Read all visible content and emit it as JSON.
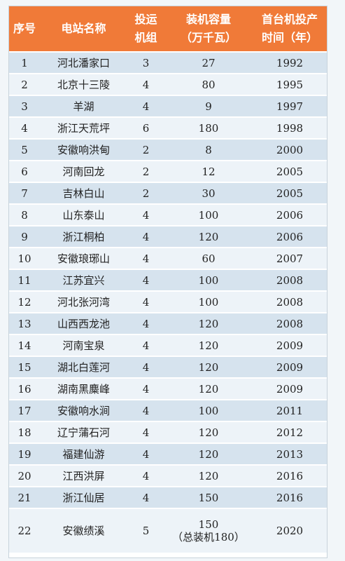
{
  "table": {
    "headers": [
      {
        "line1": "序号",
        "line2": ""
      },
      {
        "line1": "电站名称",
        "line2": ""
      },
      {
        "line1": "投运",
        "line2": "机组"
      },
      {
        "line1": "装机容量",
        "line2": "（万千瓦）"
      },
      {
        "line1": "首台机投产",
        "line2": "时间（年）"
      }
    ],
    "rows": [
      {
        "no": "1",
        "name": "河北潘家口",
        "units": "3",
        "capacity": "27",
        "capacity_note": "",
        "year": "1992"
      },
      {
        "no": "2",
        "name": "北京十三陵",
        "units": "4",
        "capacity": "80",
        "capacity_note": "",
        "year": "1995"
      },
      {
        "no": "3",
        "name": "羊湖",
        "units": "4",
        "capacity": "9",
        "capacity_note": "",
        "year": "1997"
      },
      {
        "no": "4",
        "name": "浙江天荒坪",
        "units": "6",
        "capacity": "180",
        "capacity_note": "",
        "year": "1998"
      },
      {
        "no": "5",
        "name": "安徽响洪甸",
        "units": "2",
        "capacity": "8",
        "capacity_note": "",
        "year": "2000"
      },
      {
        "no": "6",
        "name": "河南回龙",
        "units": "2",
        "capacity": "12",
        "capacity_note": "",
        "year": "2005"
      },
      {
        "no": "7",
        "name": "吉林白山",
        "units": "2",
        "capacity": "30",
        "capacity_note": "",
        "year": "2005"
      },
      {
        "no": "8",
        "name": "山东泰山",
        "units": "4",
        "capacity": "100",
        "capacity_note": "",
        "year": "2006"
      },
      {
        "no": "9",
        "name": "浙江桐柏",
        "units": "4",
        "capacity": "120",
        "capacity_note": "",
        "year": "2006"
      },
      {
        "no": "10",
        "name": "安徽琅琊山",
        "units": "4",
        "capacity": "60",
        "capacity_note": "",
        "year": "2007"
      },
      {
        "no": "11",
        "name": "江苏宜兴",
        "units": "4",
        "capacity": "100",
        "capacity_note": "",
        "year": "2008"
      },
      {
        "no": "12",
        "name": "河北张河湾",
        "units": "4",
        "capacity": "100",
        "capacity_note": "",
        "year": "2008"
      },
      {
        "no": "13",
        "name": "山西西龙池",
        "units": "4",
        "capacity": "120",
        "capacity_note": "",
        "year": "2008"
      },
      {
        "no": "14",
        "name": "河南宝泉",
        "units": "4",
        "capacity": "120",
        "capacity_note": "",
        "year": "2009"
      },
      {
        "no": "15",
        "name": "湖北白莲河",
        "units": "4",
        "capacity": "120",
        "capacity_note": "",
        "year": "2009"
      },
      {
        "no": "16",
        "name": "湖南黑麋峰",
        "units": "4",
        "capacity": "120",
        "capacity_note": "",
        "year": "2009"
      },
      {
        "no": "17",
        "name": "安徽响水涧",
        "units": "4",
        "capacity": "100",
        "capacity_note": "",
        "year": "2011"
      },
      {
        "no": "18",
        "name": "辽宁蒲石河",
        "units": "4",
        "capacity": "120",
        "capacity_note": "",
        "year": "2012"
      },
      {
        "no": "19",
        "name": "福建仙游",
        "units": "4",
        "capacity": "120",
        "capacity_note": "",
        "year": "2013"
      },
      {
        "no": "20",
        "name": "江西洪屏",
        "units": "4",
        "capacity": "120",
        "capacity_note": "",
        "year": "2016"
      },
      {
        "no": "21",
        "name": "浙江仙居",
        "units": "4",
        "capacity": "150",
        "capacity_note": "",
        "year": "2016"
      },
      {
        "no": "22",
        "name": "安徽绩溪",
        "units": "5",
        "capacity": "150",
        "capacity_note": "（总装机180）",
        "year": "2020"
      }
    ]
  },
  "colors": {
    "header_bg": "#f07a38",
    "row_odd": "#d6e3ee",
    "row_even": "#edf3f8"
  }
}
